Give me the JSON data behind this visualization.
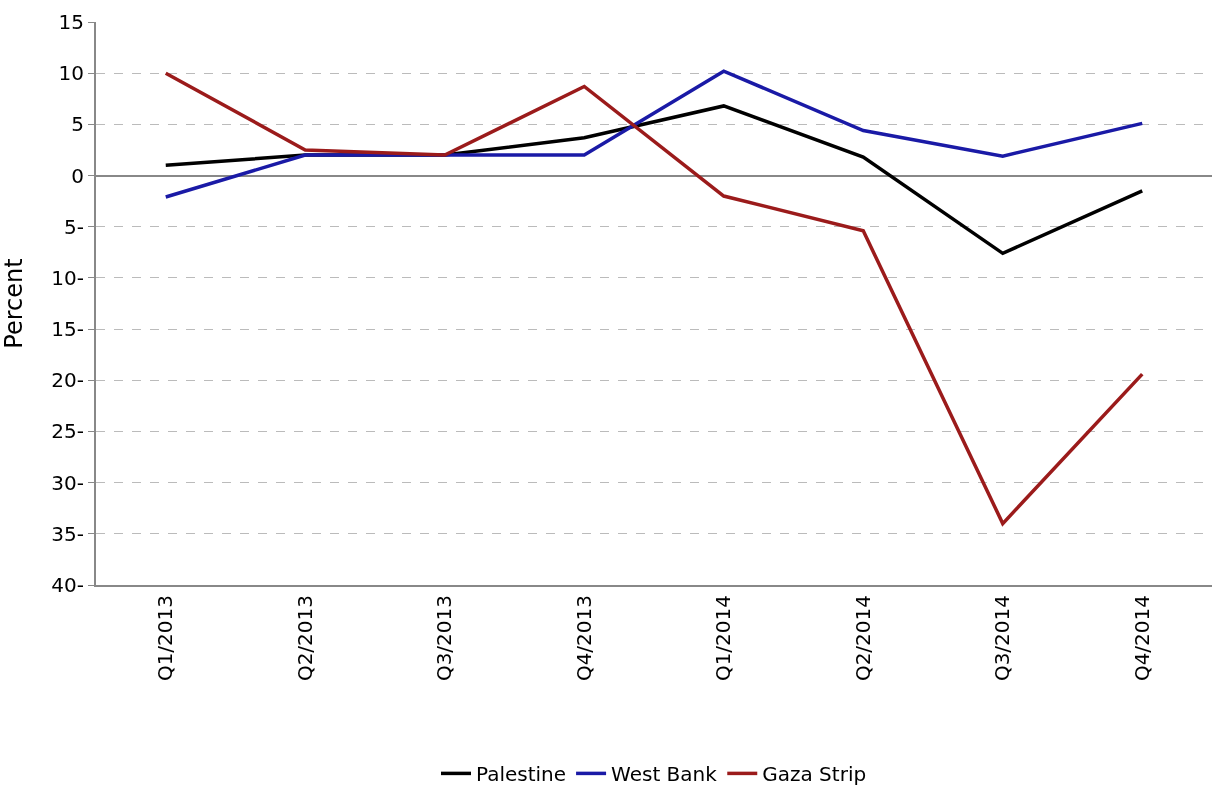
{
  "chart_data": {
    "type": "line",
    "ylabel": "Percent",
    "categories": [
      "Q1/2013",
      "Q2/2013",
      "Q3/2013",
      "Q4/2013",
      "Q1/2014",
      "Q2/2014",
      "Q3/2014",
      "Q4/2014"
    ],
    "series": [
      {
        "name": "Palestine",
        "color": "#000000",
        "values": [
          1.0,
          2.0,
          2.0,
          3.7,
          6.8,
          1.8,
          -7.6,
          -1.5
        ]
      },
      {
        "name": "West Bank",
        "color": "#1a1aa6",
        "values": [
          -2.1,
          2.0,
          2.0,
          2.0,
          10.2,
          4.4,
          1.9,
          5.1
        ]
      },
      {
        "name": "Gaza Strip",
        "color": "#9b1b1b",
        "values": [
          10.0,
          2.5,
          2.0,
          8.7,
          -2.0,
          -5.4,
          -34.0,
          -19.4
        ]
      }
    ],
    "ylim": [
      -40,
      15
    ],
    "yticks": [
      15,
      10,
      5,
      0,
      {
        "value": -5,
        "label": "5-"
      },
      {
        "value": -10,
        "label": "10-"
      },
      {
        "value": -15,
        "label": "15-"
      },
      {
        "value": -20,
        "label": "20-"
      },
      {
        "value": -25,
        "label": "25-"
      },
      {
        "value": -30,
        "label": "30-"
      },
      {
        "value": -35,
        "label": "35-"
      },
      {
        "value": -40,
        "label": "40-"
      }
    ],
    "grid": "y",
    "legend": "bottom",
    "marker": "none",
    "line_style": "solid"
  }
}
